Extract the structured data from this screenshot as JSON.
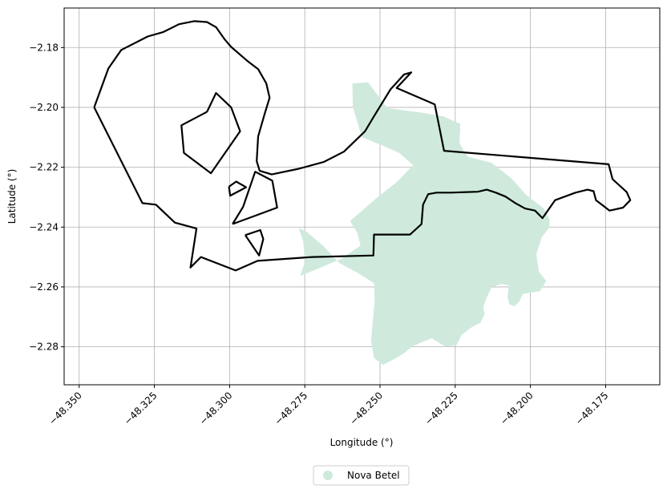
{
  "chart_data": {
    "type": "map",
    "xlabel": "Longitude (°)",
    "ylabel": "Latitude (°)",
    "xlim": [
      -48.355,
      -48.157
    ],
    "ylim": [
      -2.2927,
      -2.1668
    ],
    "xticks": [
      -48.35,
      -48.325,
      -48.3,
      -48.275,
      -48.25,
      -48.225,
      -48.2,
      -48.175
    ],
    "xtick_labels": [
      "−48.350",
      "−48.325",
      "−48.300",
      "−48.275",
      "−48.250",
      "−48.225",
      "−48.200",
      "−48.175"
    ],
    "yticks": [
      -2.18,
      -2.2,
      -2.22,
      -2.24,
      -2.26,
      -2.28
    ],
    "ytick_labels": [
      "−2.18",
      "−2.20",
      "−2.22",
      "−2.24",
      "−2.26",
      "−2.28"
    ],
    "grid": true,
    "legend": {
      "placement": "bottom-center, outside plot",
      "entries": [
        {
          "label": "Nova Betel",
          "color": "#cfeadd",
          "marker": "circle"
        }
      ]
    },
    "series": [
      {
        "name": "Nova Betel",
        "kind": "filled-polygon",
        "color": "#cfeadd",
        "coords": [
          [
            -48.2592,
            -2.192
          ],
          [
            -48.254,
            -2.1916
          ],
          [
            -48.2476,
            -2.2002
          ],
          [
            -48.2367,
            -2.2017
          ],
          [
            -48.229,
            -2.203
          ],
          [
            -48.2233,
            -2.2055
          ],
          [
            -48.2236,
            -2.212
          ],
          [
            -48.2208,
            -2.2165
          ],
          [
            -48.213,
            -2.2185
          ],
          [
            -48.2063,
            -2.2237
          ],
          [
            -48.2015,
            -2.2292
          ],
          [
            -48.1955,
            -2.2338
          ],
          [
            -48.1937,
            -2.2373
          ],
          [
            -48.1937,
            -2.2402
          ],
          [
            -48.1962,
            -2.2433
          ],
          [
            -48.198,
            -2.249
          ],
          [
            -48.1972,
            -2.2548
          ],
          [
            -48.1948,
            -2.258
          ],
          [
            -48.1968,
            -2.2614
          ],
          [
            -48.2025,
            -2.2623
          ],
          [
            -48.2038,
            -2.265
          ],
          [
            -48.2054,
            -2.2665
          ],
          [
            -48.207,
            -2.2658
          ],
          [
            -48.2076,
            -2.2635
          ],
          [
            -48.2072,
            -2.2595
          ],
          [
            -48.2095,
            -2.259
          ],
          [
            -48.2128,
            -2.26
          ],
          [
            -48.2145,
            -2.2635
          ],
          [
            -48.2157,
            -2.2669
          ],
          [
            -48.2152,
            -2.269
          ],
          [
            -48.2166,
            -2.272
          ],
          [
            -48.2193,
            -2.2733
          ],
          [
            -48.2229,
            -2.276
          ],
          [
            -48.2245,
            -2.2794
          ],
          [
            -48.2282,
            -2.28
          ],
          [
            -48.2328,
            -2.2772
          ],
          [
            -48.2365,
            -2.2786
          ],
          [
            -48.2394,
            -2.28
          ],
          [
            -48.2425,
            -2.2825
          ],
          [
            -48.246,
            -2.2845
          ],
          [
            -48.249,
            -2.286
          ],
          [
            -48.252,
            -2.2838
          ],
          [
            -48.253,
            -2.278
          ],
          [
            -48.2518,
            -2.2646
          ],
          [
            -48.252,
            -2.2588
          ],
          [
            -48.255,
            -2.2568
          ],
          [
            -48.258,
            -2.255
          ],
          [
            -48.2635,
            -2.252
          ],
          [
            -48.269,
            -2.2462
          ],
          [
            -48.2745,
            -2.2415
          ],
          [
            -48.277,
            -2.2403
          ],
          [
            -48.2755,
            -2.245
          ],
          [
            -48.275,
            -2.2516
          ],
          [
            -48.2765,
            -2.2563
          ],
          [
            -48.2697,
            -2.2535
          ],
          [
            -48.2627,
            -2.2505
          ],
          [
            -48.2565,
            -2.2462
          ],
          [
            -48.2575,
            -2.242
          ],
          [
            -48.26,
            -2.238
          ],
          [
            -48.255,
            -2.2337
          ],
          [
            -48.2508,
            -2.23
          ],
          [
            -48.2445,
            -2.225
          ],
          [
            -48.239,
            -2.2193
          ],
          [
            -48.2435,
            -2.2153
          ],
          [
            -48.249,
            -2.2128
          ],
          [
            -48.256,
            -2.21
          ],
          [
            -48.259,
            -2.2
          ]
        ]
      },
      {
        "name": "",
        "kind": "outline",
        "color": "#000000",
        "coords": [
          [
            -48.345,
            -2.2
          ],
          [
            -48.3403,
            -2.187
          ],
          [
            -48.336,
            -2.1808
          ],
          [
            -48.3272,
            -2.1763
          ],
          [
            -48.322,
            -2.1748
          ],
          [
            -48.3168,
            -2.1722
          ],
          [
            -48.3118,
            -2.1712
          ],
          [
            -48.3075,
            -2.1715
          ],
          [
            -48.3045,
            -2.1732
          ],
          [
            -48.3017,
            -2.1772
          ],
          [
            -48.2995,
            -2.1798
          ],
          [
            -48.2942,
            -2.1844
          ],
          [
            -48.2905,
            -2.1872
          ],
          [
            -48.2878,
            -2.192
          ],
          [
            -48.2867,
            -2.1968
          ],
          [
            -48.2883,
            -2.202
          ],
          [
            -48.2905,
            -2.2097
          ],
          [
            -48.291,
            -2.218
          ],
          [
            -48.29,
            -2.2212
          ],
          [
            -48.286,
            -2.2224
          ],
          [
            -48.277,
            -2.2205
          ],
          [
            -48.2686,
            -2.2182
          ],
          [
            -48.262,
            -2.2148
          ],
          [
            -48.255,
            -2.208
          ],
          [
            -48.252,
            -2.203
          ],
          [
            -48.2465,
            -2.194
          ],
          [
            -48.242,
            -2.189
          ],
          [
            -48.2396,
            -2.1883
          ],
          [
            -48.2445,
            -2.1935
          ],
          [
            -48.2318,
            -2.199
          ],
          [
            -48.2287,
            -2.2145
          ],
          [
            -48.174,
            -2.219
          ],
          [
            -48.1727,
            -2.224
          ],
          [
            -48.168,
            -2.2283
          ],
          [
            -48.1668,
            -2.231
          ],
          [
            -48.1692,
            -2.2335
          ],
          [
            -48.1737,
            -2.2345
          ],
          [
            -48.1782,
            -2.231
          ],
          [
            -48.179,
            -2.228
          ],
          [
            -48.181,
            -2.2275
          ],
          [
            -48.185,
            -2.2285
          ],
          [
            -48.1918,
            -2.231
          ],
          [
            -48.196,
            -2.237
          ],
          [
            -48.1985,
            -2.2345
          ],
          [
            -48.2018,
            -2.2338
          ],
          [
            -48.205,
            -2.232
          ],
          [
            -48.2083,
            -2.2298
          ],
          [
            -48.2115,
            -2.2285
          ],
          [
            -48.2145,
            -2.2275
          ],
          [
            -48.2175,
            -2.2282
          ],
          [
            -48.2212,
            -2.2283
          ],
          [
            -48.2265,
            -2.2285
          ],
          [
            -48.2312,
            -2.2285
          ],
          [
            -48.234,
            -2.229
          ],
          [
            -48.2357,
            -2.2325
          ],
          [
            -48.2362,
            -2.239
          ],
          [
            -48.24,
            -2.2425
          ],
          [
            -48.2475,
            -2.2425
          ],
          [
            -48.252,
            -2.2425
          ],
          [
            -48.2522,
            -2.2495
          ],
          [
            -48.2725,
            -2.25
          ],
          [
            -48.2907,
            -2.2513
          ],
          [
            -48.298,
            -2.2545
          ],
          [
            -48.3095,
            -2.25
          ],
          [
            -48.313,
            -2.2535
          ],
          [
            -48.311,
            -2.2405
          ],
          [
            -48.3182,
            -2.2385
          ],
          [
            -48.3245,
            -2.2325
          ],
          [
            -48.329,
            -2.232
          ],
          [
            -48.345,
            -2.2
          ]
        ]
      },
      {
        "name": "",
        "kind": "outline",
        "color": "#000000",
        "coords": [
          [
            -48.3075,
            -2.2015
          ],
          [
            -48.3045,
            -2.1952
          ],
          [
            -48.2995,
            -2.2
          ],
          [
            -48.2965,
            -2.208
          ],
          [
            -48.3062,
            -2.222
          ],
          [
            -48.3152,
            -2.2152
          ],
          [
            -48.316,
            -2.206
          ],
          [
            -48.3075,
            -2.2015
          ]
        ]
      },
      {
        "name": "",
        "kind": "outline",
        "color": "#000000",
        "coords": [
          [
            -48.3002,
            -2.2265
          ],
          [
            -48.2978,
            -2.2248
          ],
          [
            -48.2945,
            -2.2267
          ],
          [
            -48.2998,
            -2.2295
          ],
          [
            -48.3002,
            -2.2265
          ]
        ]
      },
      {
        "name": "",
        "kind": "outline",
        "color": "#000000",
        "coords": [
          [
            -48.299,
            -2.239
          ],
          [
            -48.2955,
            -2.2332
          ],
          [
            -48.2915,
            -2.2215
          ],
          [
            -48.2858,
            -2.2245
          ],
          [
            -48.2842,
            -2.2335
          ],
          [
            -48.299,
            -2.239
          ]
        ]
      },
      {
        "name": "",
        "kind": "outline",
        "color": "#000000",
        "coords": [
          [
            -48.2948,
            -2.2427
          ],
          [
            -48.2898,
            -2.241
          ],
          [
            -48.2888,
            -2.244
          ],
          [
            -48.2902,
            -2.2495
          ],
          [
            -48.2948,
            -2.2427
          ]
        ]
      }
    ]
  }
}
